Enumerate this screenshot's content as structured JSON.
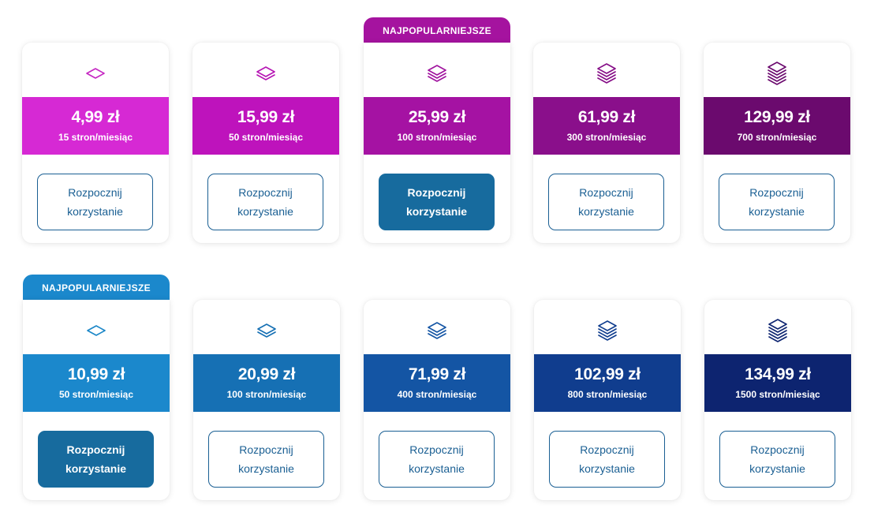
{
  "colors": {
    "button_border": "#1a5f93",
    "button_filled": "#176b9e",
    "badge_purple": "#a5139f",
    "badge_blue": "#1b88cc"
  },
  "rows": [
    {
      "plans": [
        {
          "price": "4,99 zł",
          "pages": "15 stron/miesiąc",
          "color": "#d629d4",
          "icon": "single-layer-icon",
          "icon_color": "#c527c2",
          "layers": 1,
          "popular": false,
          "badge": "",
          "badge_color": "",
          "button": "Rozpocznij korzystanie"
        },
        {
          "price": "15,99 zł",
          "pages": "50 stron/miesiąc",
          "color": "#be13bc",
          "icon": "two-layers-icon",
          "icon_color": "#b615b4",
          "layers": 2,
          "popular": false,
          "badge": "",
          "badge_color": "",
          "button": "Rozpocznij korzystanie"
        },
        {
          "price": "25,99 zł",
          "pages": "100 stron/miesiąc",
          "color": "#a512a3",
          "icon": "three-layers-icon",
          "icon_color": "#a0139e",
          "layers": 3,
          "popular": true,
          "badge": "NAJPOPULARNIEJSZE",
          "badge_color": "#a5139f",
          "button": "Rozpocznij korzystanie"
        },
        {
          "price": "61,99 zł",
          "pages": "300 stron/miesiąc",
          "color": "#8a0f8b",
          "icon": "four-layers-icon",
          "icon_color": "#850c86",
          "layers": 4,
          "popular": false,
          "badge": "",
          "badge_color": "",
          "button": "Rozpocznij korzystanie"
        },
        {
          "price": "129,99 zł",
          "pages": "700 stron/miesiąc",
          "color": "#6b0a6e",
          "icon": "five-layers-icon",
          "icon_color": "#6b0a6e",
          "layers": 5,
          "popular": false,
          "badge": "",
          "badge_color": "",
          "button": "Rozpocznij korzystanie"
        }
      ]
    },
    {
      "plans": [
        {
          "price": "10,99 zł",
          "pages": "50 stron/miesiąc",
          "color": "#1b88cc",
          "icon": "single-layer-icon",
          "icon_color": "#1a86c7",
          "layers": 1,
          "popular": true,
          "badge": "NAJPOPULARNIEJSZE",
          "badge_color": "#1b88cc",
          "button": "Rozpocznij korzystanie"
        },
        {
          "price": "20,99 zł",
          "pages": "100 stron/miesiąc",
          "color": "#1670b4",
          "icon": "two-layers-icon",
          "icon_color": "#1670b4",
          "layers": 2,
          "popular": false,
          "badge": "",
          "badge_color": "",
          "button": "Rozpocznij korzystanie"
        },
        {
          "price": "71,99 zł",
          "pages": "400 stron/miesiąc",
          "color": "#1455a4",
          "icon": "three-layers-icon",
          "icon_color": "#1455a4",
          "layers": 3,
          "popular": false,
          "badge": "",
          "badge_color": "",
          "button": "Rozpocznij korzystanie"
        },
        {
          "price": "102,99 zł",
          "pages": "800 stron/miesiąc",
          "color": "#103d8e",
          "icon": "four-layers-icon",
          "icon_color": "#103d8e",
          "layers": 4,
          "popular": false,
          "badge": "",
          "badge_color": "",
          "button": "Rozpocznij korzystanie"
        },
        {
          "price": "134,99 zł",
          "pages": "1500 stron/miesiąc",
          "color": "#0d2470",
          "icon": "five-layers-icon",
          "icon_color": "#0d2470",
          "layers": 5,
          "popular": false,
          "badge": "",
          "badge_color": "",
          "button": "Rozpocznij korzystanie"
        }
      ]
    }
  ]
}
